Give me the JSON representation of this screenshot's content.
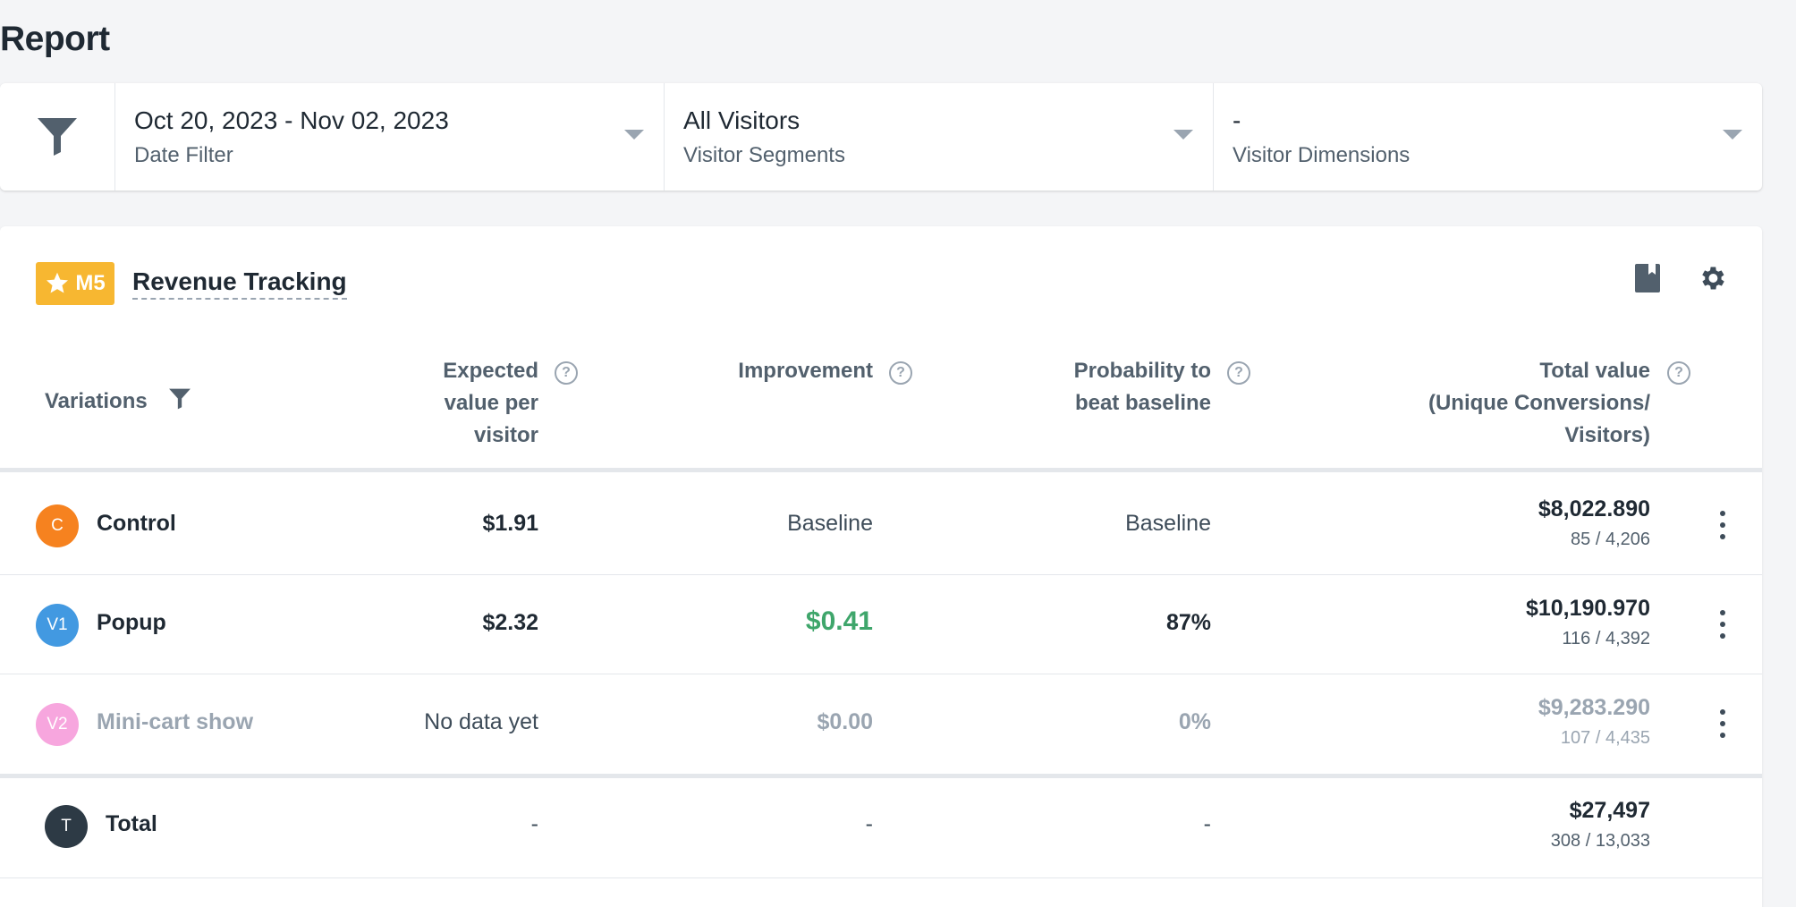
{
  "page": {
    "title": "Report"
  },
  "filters": [
    {
      "value": "Oct 20, 2023 - Nov 02, 2023",
      "label": "Date Filter"
    },
    {
      "value": "All Visitors",
      "label": "Visitor Segments"
    },
    {
      "value": "-",
      "label": "Visitor Dimensions"
    }
  ],
  "metric": {
    "badge": "M5",
    "name": "Revenue Tracking"
  },
  "table": {
    "headers": {
      "variations": "Variations",
      "expected_value": [
        "Expected",
        "value per",
        "visitor"
      ],
      "improvement": "Improvement",
      "probability": [
        "Probability to",
        "beat baseline"
      ],
      "total_value": [
        "Total value",
        "(Unique Conversions/",
        "Visitors)"
      ]
    },
    "help_glyph": "?",
    "rows": [
      {
        "avatar": "C",
        "name": "Control",
        "expected": "$1.91",
        "improvement": "Baseline",
        "probability": "Baseline",
        "total": "$8,022.890",
        "sub": "85 / 4,206"
      },
      {
        "avatar": "V1",
        "name": "Popup",
        "expected": "$2.32",
        "improvement": "$0.41",
        "probability": "87%",
        "total": "$10,190.970",
        "sub": "116 / 4,392"
      },
      {
        "avatar": "V2",
        "name": "Mini-cart show",
        "expected": "No data yet",
        "improvement": "$0.00",
        "probability": "0%",
        "total": "$9,283.290",
        "sub": "107 / 4,435"
      }
    ],
    "total": {
      "avatar": "T",
      "name": "Total",
      "expected": "-",
      "improvement": "-",
      "probability": "-",
      "total": "$27,497",
      "sub": "308 / 13,033"
    }
  },
  "colors": {
    "control": "#f6821f",
    "popup": "#4299e1",
    "mini_cart": "#f7a6de",
    "total": "#2d3a45",
    "badge": "#f7b731",
    "positive": "#3fa66b"
  },
  "icons": [
    "funnel-icon",
    "chevron-down-icon",
    "star-icon",
    "notebook-icon",
    "gear-icon",
    "help-icon",
    "kebab-menu-icon"
  ]
}
